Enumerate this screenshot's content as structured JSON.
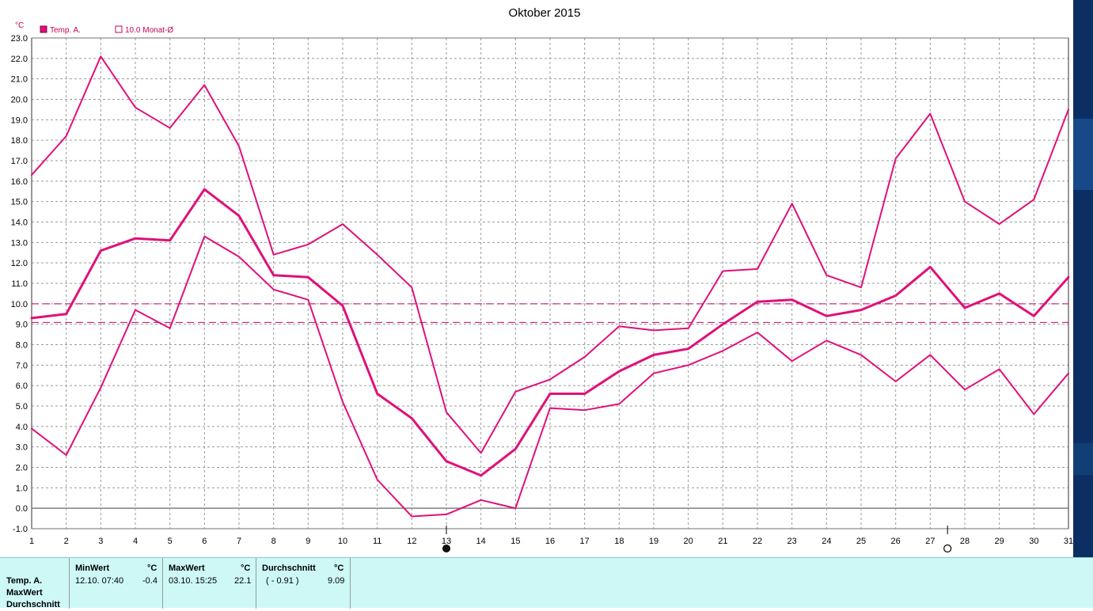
{
  "chart_data": {
    "type": "line",
    "title": "Oktober 2015",
    "unit_label": "°C",
    "ylim": [
      -1.0,
      23.0
    ],
    "y_ticks": [
      "23.0",
      "22.0",
      "21.0",
      "20.0",
      "19.0",
      "18.0",
      "17.0",
      "16.0",
      "15.0",
      "14.0",
      "13.0",
      "12.0",
      "11.0",
      "10.0",
      "9.0",
      "8.0",
      "7.0",
      "6.0",
      "5.0",
      "4.0",
      "3.0",
      "2.0",
      "1.0",
      "0.0",
      "-1.0"
    ],
    "x": [
      1,
      2,
      3,
      4,
      5,
      6,
      7,
      8,
      9,
      10,
      11,
      12,
      13,
      14,
      15,
      16,
      17,
      18,
      19,
      20,
      21,
      22,
      23,
      24,
      25,
      26,
      27,
      28,
      29,
      30,
      31
    ],
    "x_labels": [
      "1",
      "2",
      "3",
      "4",
      "5",
      "6",
      "7",
      "8",
      "9",
      "10",
      "11",
      "12",
      "13",
      "14",
      "15",
      "16",
      "17",
      "18",
      "19",
      "20",
      "21",
      "22",
      "23",
      "24",
      "25",
      "26",
      "27",
      "28",
      "29",
      "30",
      "31"
    ],
    "grid": true,
    "legend": [
      {
        "label": "Temp. A.",
        "marker": "filled"
      },
      {
        "label": "10.0 Monat-Ø",
        "marker": "empty"
      }
    ],
    "series": [
      {
        "role": "max",
        "values": [
          16.3,
          18.2,
          22.1,
          19.6,
          18.6,
          20.7,
          17.7,
          12.4,
          12.9,
          13.9,
          12.4,
          10.8,
          4.7,
          2.7,
          5.7,
          6.3,
          7.4,
          8.9,
          8.7,
          8.8,
          11.6,
          11.7,
          14.9,
          11.4,
          10.8,
          17.1,
          19.3,
          15.0,
          13.9,
          15.1,
          19.5
        ],
        "color": "#e0107a"
      },
      {
        "name": "Temp. A.",
        "role": "mean",
        "values": [
          9.3,
          9.5,
          12.6,
          13.2,
          13.1,
          15.6,
          14.3,
          11.4,
          11.3,
          9.9,
          5.6,
          4.4,
          2.3,
          1.6,
          2.9,
          5.6,
          5.6,
          6.7,
          7.5,
          7.8,
          9.0,
          10.1,
          10.2,
          9.4,
          9.7,
          10.4,
          11.8,
          9.8,
          10.5,
          9.4,
          11.3
        ],
        "color": "#e0107a"
      },
      {
        "role": "min",
        "values": [
          3.9,
          2.6,
          5.9,
          9.7,
          8.8,
          13.3,
          12.3,
          10.7,
          10.2,
          5.2,
          1.4,
          -0.4,
          -0.3,
          0.4,
          0.0,
          4.9,
          4.8,
          5.1,
          6.6,
          7.0,
          7.7,
          8.6,
          7.2,
          8.2,
          7.5,
          6.2,
          7.5,
          5.8,
          6.8,
          4.6,
          6.6
        ],
        "color": "#e0107a"
      }
    ],
    "reference_lines": [
      {
        "value": 10.0,
        "label": "10.0 Monat-Ø",
        "style": "dashed"
      },
      {
        "value": 9.09,
        "style": "dashed"
      }
    ],
    "moon_markers": [
      {
        "day": 13,
        "phase": "new-moon"
      },
      {
        "day": 27.5,
        "phase": "full-moon"
      }
    ]
  },
  "stats": {
    "row_labels": [
      "Temp. A.",
      "MaxWert",
      "Durchschnitt"
    ],
    "min": {
      "header": "MinWert",
      "unit": "°C",
      "datetime": "12.10.  07:40",
      "value": "-0.4"
    },
    "max": {
      "header": "MaxWert",
      "unit": "°C",
      "datetime": "03.10.  15:25",
      "value": "22.1"
    },
    "avg": {
      "header": "Durchschnitt",
      "unit": "°C",
      "diff": "( - 0.91 )",
      "value": "9.09"
    }
  },
  "colors": {
    "line": "#e0107a",
    "reference": "#c8006e",
    "panel_bg": "#cdf8f6",
    "strip": "#0c2f63"
  }
}
